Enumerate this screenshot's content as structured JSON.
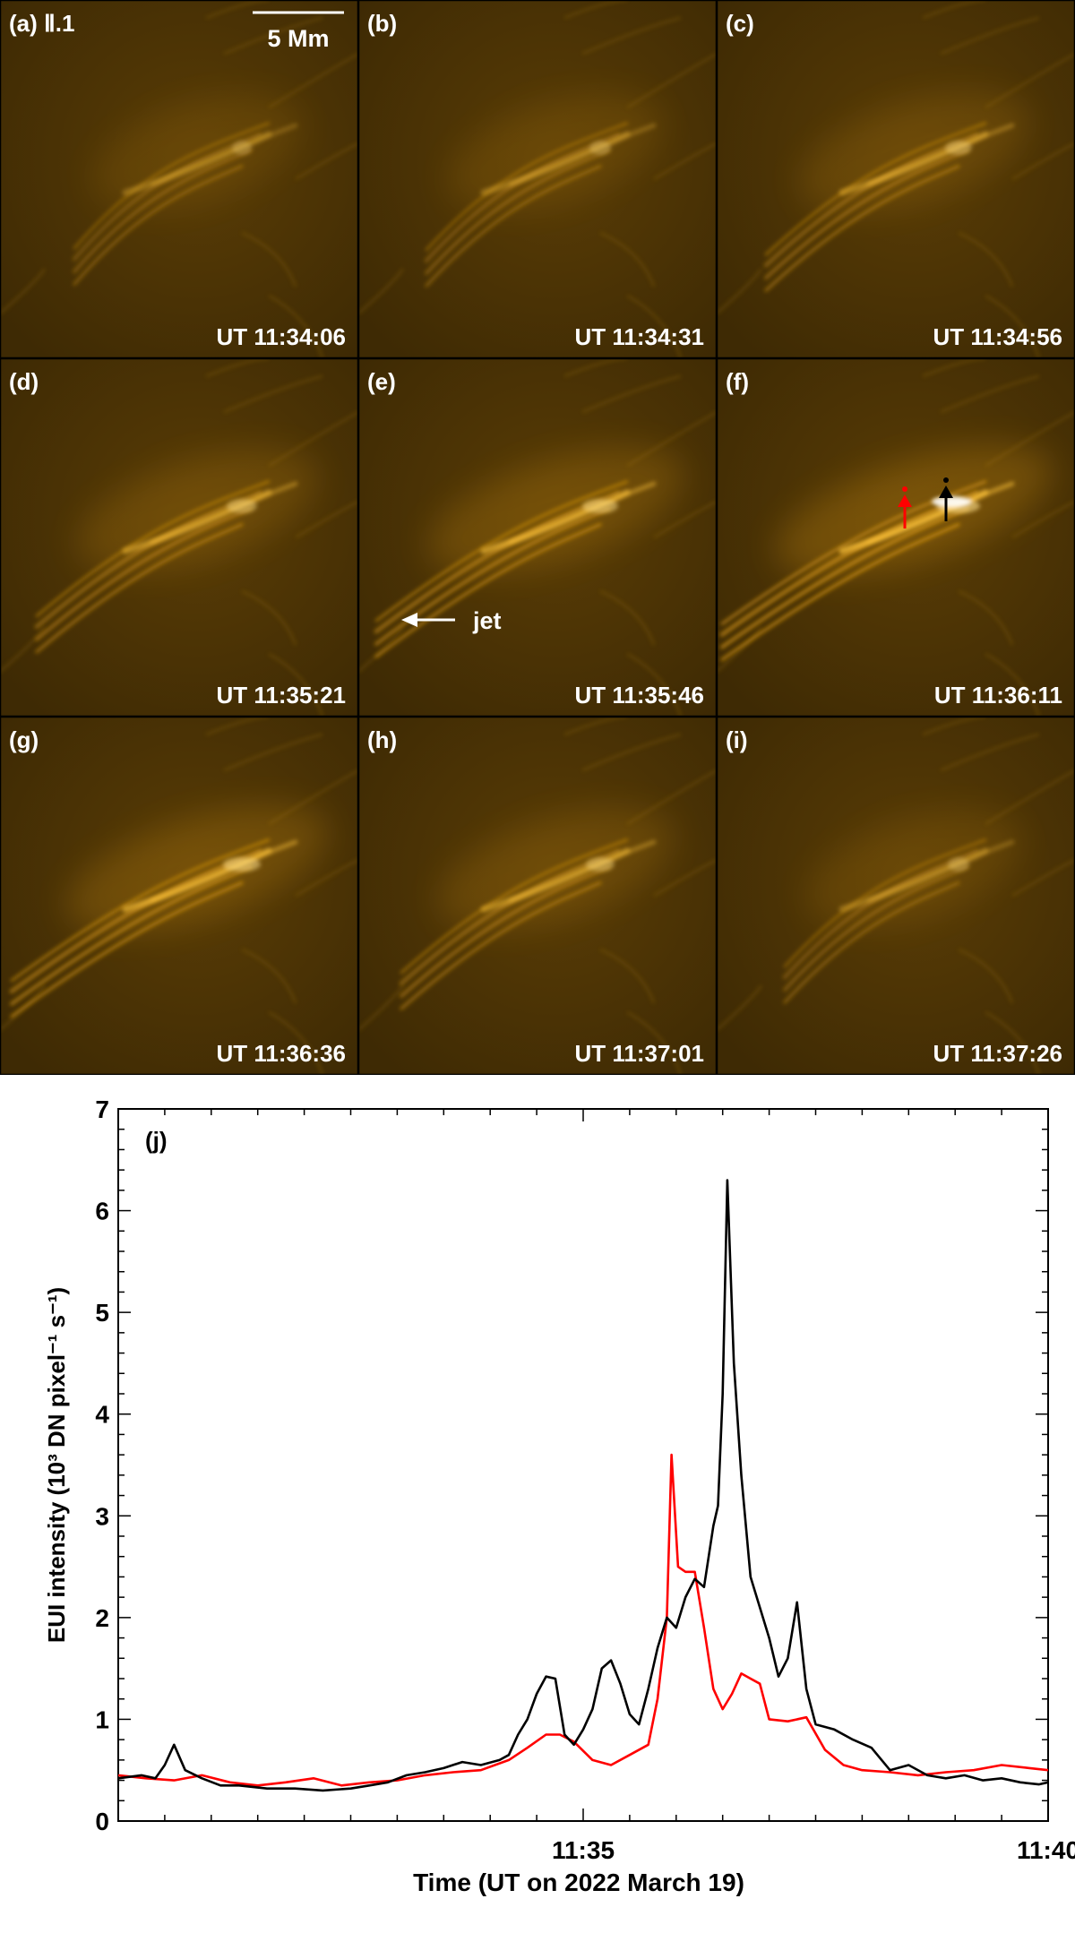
{
  "panels": [
    {
      "label": "(a) Ⅱ.1",
      "time": "UT 11:34:06",
      "brightness": 0.55
    },
    {
      "label": "(b)",
      "time": "UT 11:34:31",
      "brightness": 0.6
    },
    {
      "label": "(c)",
      "time": "UT 11:34:56",
      "brightness": 0.75
    },
    {
      "label": "(d)",
      "time": "UT 11:35:21",
      "brightness": 0.85
    },
    {
      "label": "(e)",
      "time": "UT 11:35:46",
      "brightness": 1.0
    },
    {
      "label": "(f)",
      "time": "UT 11:36:11",
      "brightness": 1.2
    },
    {
      "label": "(g)",
      "time": "UT 11:36:36",
      "brightness": 1.05
    },
    {
      "label": "(h)",
      "time": "UT 11:37:01",
      "brightness": 0.8
    },
    {
      "label": "(i)",
      "time": "UT 11:37:26",
      "brightness": 0.6
    }
  ],
  "annotations": {
    "scale_bar": "5 Mm",
    "jet_label": "jet"
  },
  "colors": {
    "panel_background": "#4a3204",
    "emission": "#f0a818",
    "red_series": "#ff0000",
    "black_series": "#000000"
  },
  "chart_data": {
    "type": "line",
    "panel_label": "(j)",
    "xlabel": "Time (UT on 2022 March 19)",
    "ylabel": "EUI intensity (10³ DN pixel⁻¹ s⁻¹)",
    "x_tick_labels": [
      "11:35",
      "11:40"
    ],
    "y_tick_labels": [
      "0",
      "1",
      "2",
      "3",
      "4",
      "5",
      "6",
      "7"
    ],
    "ylim": [
      0,
      7
    ],
    "xlim_minutes_after_11:30": [
      0,
      10
    ],
    "x_unit": "minutes after 11:30 UT",
    "series": [
      {
        "color": "#000000",
        "points": [
          [
            0.0,
            0.42
          ],
          [
            0.25,
            0.45
          ],
          [
            0.4,
            0.42
          ],
          [
            0.5,
            0.55
          ],
          [
            0.6,
            0.75
          ],
          [
            0.72,
            0.5
          ],
          [
            0.9,
            0.42
          ],
          [
            1.1,
            0.35
          ],
          [
            1.3,
            0.35
          ],
          [
            1.6,
            0.32
          ],
          [
            1.9,
            0.32
          ],
          [
            2.2,
            0.3
          ],
          [
            2.5,
            0.32
          ],
          [
            2.7,
            0.35
          ],
          [
            2.9,
            0.38
          ],
          [
            3.1,
            0.45
          ],
          [
            3.3,
            0.48
          ],
          [
            3.5,
            0.52
          ],
          [
            3.7,
            0.58
          ],
          [
            3.9,
            0.55
          ],
          [
            4.1,
            0.6
          ],
          [
            4.2,
            0.65
          ],
          [
            4.3,
            0.85
          ],
          [
            4.4,
            1.0
          ],
          [
            4.5,
            1.25
          ],
          [
            4.6,
            1.42
          ],
          [
            4.7,
            1.4
          ],
          [
            4.8,
            0.85
          ],
          [
            4.9,
            0.75
          ],
          [
            5.0,
            0.9
          ],
          [
            5.1,
            1.1
          ],
          [
            5.2,
            1.5
          ],
          [
            5.3,
            1.58
          ],
          [
            5.4,
            1.35
          ],
          [
            5.5,
            1.05
          ],
          [
            5.6,
            0.95
          ],
          [
            5.7,
            1.3
          ],
          [
            5.8,
            1.7
          ],
          [
            5.9,
            2.0
          ],
          [
            6.0,
            1.9
          ],
          [
            6.1,
            2.2
          ],
          [
            6.2,
            2.38
          ],
          [
            6.3,
            2.3
          ],
          [
            6.4,
            2.9
          ],
          [
            6.45,
            3.1
          ],
          [
            6.5,
            4.2
          ],
          [
            6.55,
            6.3
          ],
          [
            6.62,
            4.5
          ],
          [
            6.7,
            3.4
          ],
          [
            6.8,
            2.4
          ],
          [
            6.9,
            2.1
          ],
          [
            7.0,
            1.8
          ],
          [
            7.1,
            1.42
          ],
          [
            7.2,
            1.6
          ],
          [
            7.3,
            2.15
          ],
          [
            7.4,
            1.3
          ],
          [
            7.5,
            0.95
          ],
          [
            7.7,
            0.9
          ],
          [
            7.9,
            0.8
          ],
          [
            8.1,
            0.72
          ],
          [
            8.3,
            0.5
          ],
          [
            8.5,
            0.55
          ],
          [
            8.7,
            0.45
          ],
          [
            8.9,
            0.42
          ],
          [
            9.1,
            0.45
          ],
          [
            9.3,
            0.4
          ],
          [
            9.5,
            0.42
          ],
          [
            9.7,
            0.38
          ],
          [
            9.9,
            0.36
          ],
          [
            10.0,
            0.38
          ]
        ]
      },
      {
        "color": "#ff0000",
        "points": [
          [
            0.0,
            0.45
          ],
          [
            0.3,
            0.42
          ],
          [
            0.6,
            0.4
          ],
          [
            0.9,
            0.45
          ],
          [
            1.2,
            0.38
          ],
          [
            1.5,
            0.35
          ],
          [
            1.8,
            0.38
          ],
          [
            2.1,
            0.42
          ],
          [
            2.4,
            0.35
          ],
          [
            2.7,
            0.38
          ],
          [
            3.0,
            0.4
          ],
          [
            3.3,
            0.45
          ],
          [
            3.6,
            0.48
          ],
          [
            3.9,
            0.5
          ],
          [
            4.2,
            0.6
          ],
          [
            4.4,
            0.72
          ],
          [
            4.6,
            0.85
          ],
          [
            4.75,
            0.85
          ],
          [
            4.9,
            0.78
          ],
          [
            5.1,
            0.6
          ],
          [
            5.3,
            0.55
          ],
          [
            5.5,
            0.65
          ],
          [
            5.7,
            0.75
          ],
          [
            5.8,
            1.2
          ],
          [
            5.9,
            2.0
          ],
          [
            5.95,
            3.6
          ],
          [
            6.02,
            2.5
          ],
          [
            6.1,
            2.45
          ],
          [
            6.2,
            2.45
          ],
          [
            6.3,
            1.9
          ],
          [
            6.4,
            1.3
          ],
          [
            6.5,
            1.1
          ],
          [
            6.6,
            1.25
          ],
          [
            6.7,
            1.45
          ],
          [
            6.8,
            1.4
          ],
          [
            6.9,
            1.35
          ],
          [
            7.0,
            1.0
          ],
          [
            7.2,
            0.98
          ],
          [
            7.4,
            1.02
          ],
          [
            7.6,
            0.7
          ],
          [
            7.8,
            0.55
          ],
          [
            8.0,
            0.5
          ],
          [
            8.3,
            0.48
          ],
          [
            8.6,
            0.45
          ],
          [
            8.9,
            0.48
          ],
          [
            9.2,
            0.5
          ],
          [
            9.5,
            0.55
          ],
          [
            9.8,
            0.52
          ],
          [
            10.0,
            0.5
          ]
        ]
      }
    ]
  }
}
